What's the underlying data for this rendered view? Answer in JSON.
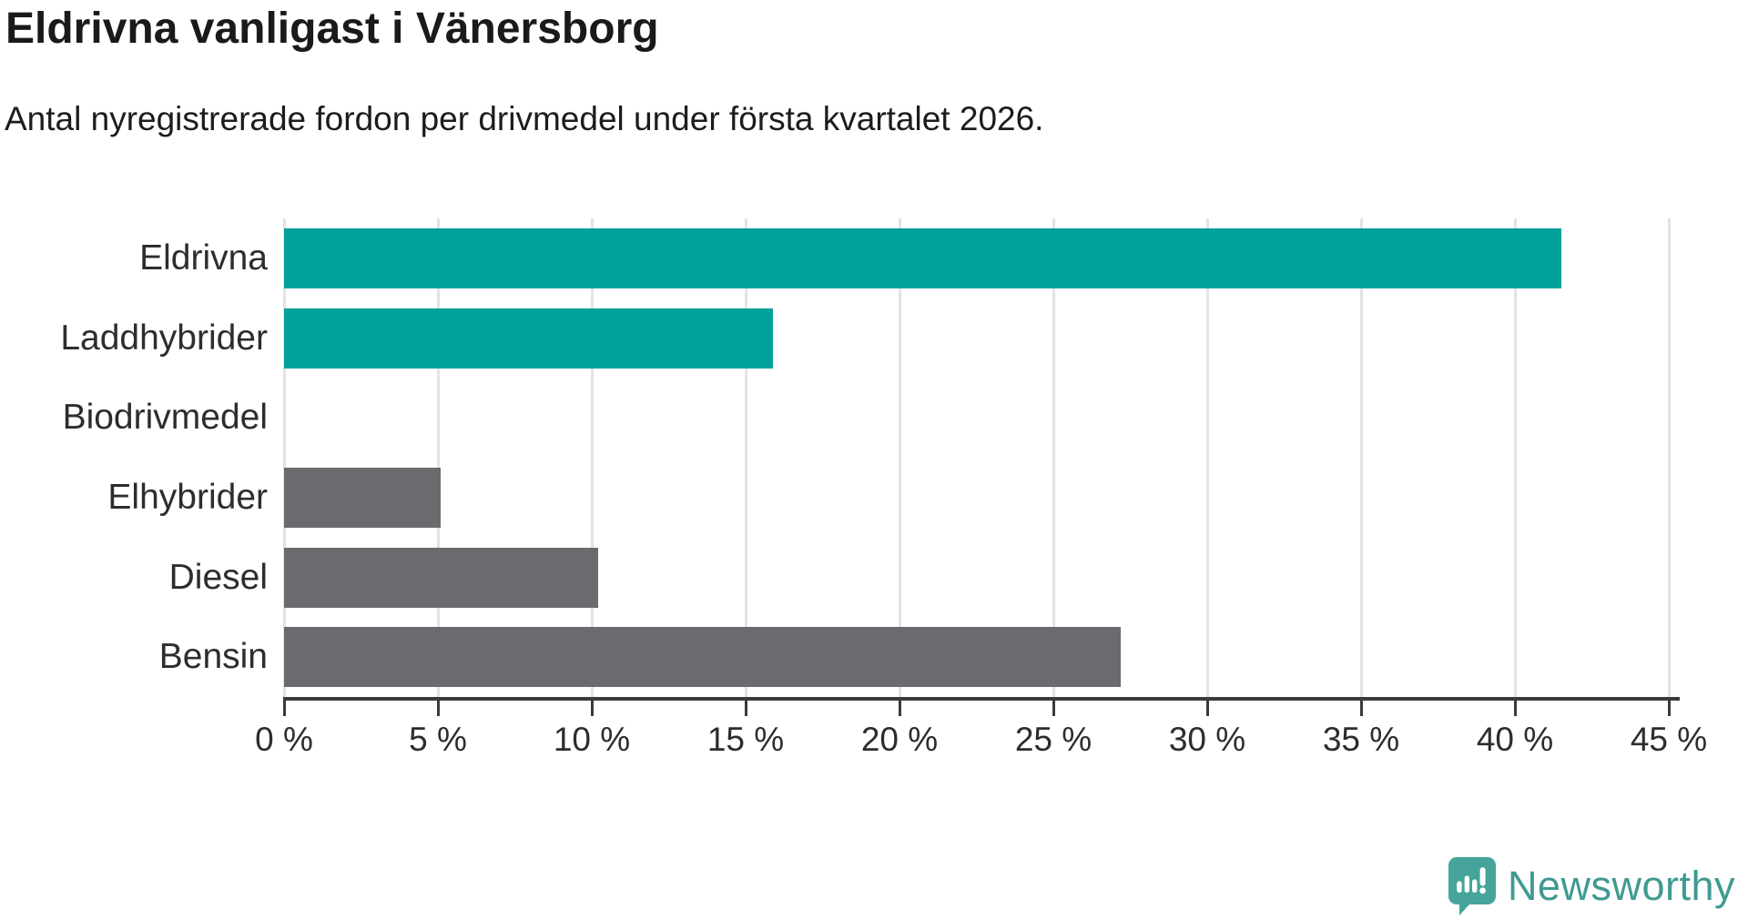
{
  "header": {
    "title": "Eldrivna vanligast i Vänersborg",
    "subtitle": "Antal nyregistrerade fordon per drivmedel under första kvartalet 2026."
  },
  "chart_data": {
    "type": "bar",
    "orientation": "horizontal",
    "title": "Eldrivna vanligast i Vänersborg",
    "subtitle": "Antal nyregistrerade fordon per drivmedel under första kvartalet 2026.",
    "categories": [
      "Eldrivna",
      "Laddhybrider",
      "Biodrivmedel",
      "Elhybrider",
      "Diesel",
      "Bensin"
    ],
    "values": [
      41.5,
      15.9,
      0,
      5.1,
      10.2,
      27.2
    ],
    "unit": "%",
    "bar_colors": [
      "#00a19a",
      "#00a19a",
      "#6c6a6e",
      "#6c6a6e",
      "#6c6a6e",
      "#6c6a6e"
    ],
    "xlabel": "",
    "ylabel": "",
    "xlim": [
      0,
      45
    ],
    "x_ticks": [
      0,
      5,
      10,
      15,
      20,
      25,
      30,
      35,
      40,
      45
    ],
    "x_tick_labels": [
      "0 %",
      "5 %",
      "10 %",
      "15 %",
      "20 %",
      "25 %",
      "30 %",
      "35 %",
      "40 %",
      "45 %"
    ],
    "grid": "vertical-only",
    "legend": "none"
  },
  "colors": {
    "accent_teal": "#00a19a",
    "bar_gray": "#6c6a6e",
    "gridline": "#e3e3e3",
    "axis": "#3b3b3b",
    "logo_teal": "#46a49b",
    "logo_text_teal": "#3f9a91"
  },
  "footer": {
    "brand": "Newsworthy",
    "logo_icon": "bar-chart-speech-pin-icon"
  }
}
